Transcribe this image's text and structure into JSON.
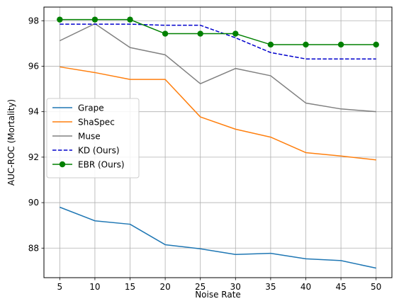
{
  "chart_data": {
    "type": "line",
    "title": "",
    "xlabel": "Noise Rate",
    "ylabel": "AUC-ROC (Mortality)",
    "x": [
      5,
      10,
      15,
      20,
      25,
      30,
      35,
      40,
      45,
      50
    ],
    "xticks": [
      "5",
      "10",
      "15",
      "20",
      "25",
      "30",
      "35",
      "40",
      "45",
      "50"
    ],
    "yticks": [
      "88",
      "90",
      "92",
      "94",
      "96",
      "98"
    ],
    "xlim": [
      2.75,
      52.25
    ],
    "ylim": [
      86.7,
      98.6
    ],
    "grid": true,
    "legend_position": "center-left",
    "series": [
      {
        "name": "Grape",
        "color": "#1f77b4",
        "style": "solid",
        "marker": "none",
        "values": [
          89.8,
          89.2,
          89.05,
          88.15,
          87.97,
          87.72,
          87.77,
          87.53,
          87.45,
          87.12
        ]
      },
      {
        "name": "ShaSpec",
        "color": "#ff7f0e",
        "style": "solid",
        "marker": "none",
        "values": [
          95.97,
          95.72,
          95.42,
          95.42,
          93.77,
          93.23,
          92.88,
          92.2,
          92.05,
          91.88
        ]
      },
      {
        "name": "Muse",
        "color": "#808080",
        "style": "solid",
        "marker": "none",
        "values": [
          97.12,
          97.87,
          96.82,
          96.5,
          95.23,
          95.9,
          95.58,
          94.38,
          94.12,
          94.0
        ]
      },
      {
        "name": "KD (Ours)",
        "color": "#0000cc",
        "style": "dashed",
        "marker": "none",
        "values": [
          97.85,
          97.85,
          97.85,
          97.8,
          97.8,
          97.25,
          96.6,
          96.32,
          96.32,
          96.32
        ]
      },
      {
        "name": "EBR (Ours)",
        "color": "#008000",
        "style": "solid",
        "marker": "circle",
        "values": [
          98.05,
          98.05,
          98.05,
          97.43,
          97.43,
          97.43,
          96.95,
          96.95,
          96.95,
          96.95
        ]
      }
    ]
  }
}
